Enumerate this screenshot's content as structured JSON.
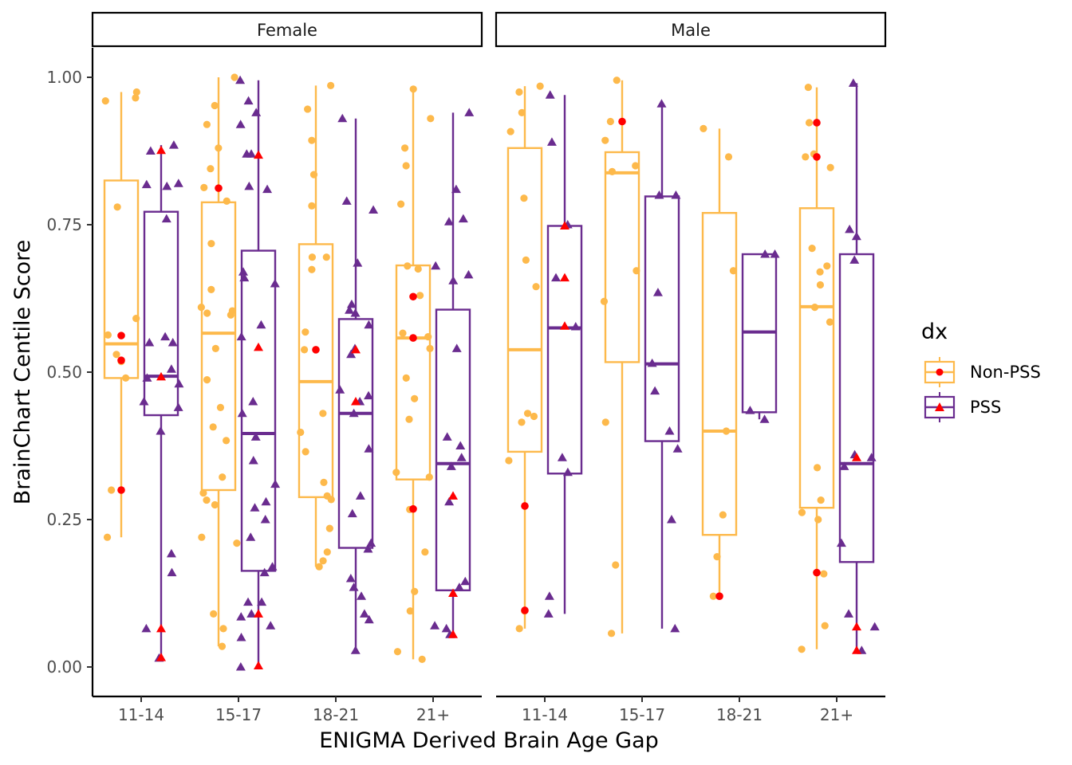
{
  "chart_data": {
    "type": "box",
    "xlabel": "ENIGMA Derived Brain Age Gap",
    "ylabel": "BrainChart Centile Score",
    "ylim": [
      -0.05,
      1.05
    ],
    "y_ticks": [
      "0.00",
      "0.25",
      "0.50",
      "0.75",
      "1.00"
    ],
    "y_tick_values": [
      0,
      0.25,
      0.5,
      0.75,
      1.0
    ],
    "categories": [
      "11-14",
      "15-17",
      "18-21",
      "21+"
    ],
    "facets": [
      "Female",
      "Male"
    ],
    "grid": false,
    "legend": {
      "title": "dx",
      "position": "right",
      "entries": [
        {
          "label": "Non-PSS",
          "color": "#FDB94B",
          "shape": "circle"
        },
        {
          "label": "PSS",
          "color": "#6A2C8F",
          "shape": "triangle"
        }
      ]
    },
    "outlier_color": "#FF0000",
    "boxes": {
      "Female": {
        "Non-PSS": [
          {
            "category": "11-14",
            "whisker_low": 0.22,
            "q1": 0.49,
            "median": 0.548,
            "q3": 0.825,
            "whisker_high": 0.975
          },
          {
            "category": "15-17",
            "whisker_low": 0.035,
            "q1": 0.3,
            "median": 0.566,
            "q3": 0.788,
            "whisker_high": 1.0
          },
          {
            "category": "18-21",
            "whisker_low": 0.17,
            "q1": 0.288,
            "median": 0.484,
            "q3": 0.717,
            "whisker_high": 0.986
          },
          {
            "category": "21+",
            "whisker_low": 0.013,
            "q1": 0.318,
            "median": 0.558,
            "q3": 0.681,
            "whisker_high": 0.98
          }
        ],
        "PSS": [
          {
            "category": "11-14",
            "whisker_low": 0.015,
            "q1": 0.427,
            "median": 0.493,
            "q3": 0.772,
            "whisker_high": 0.885
          },
          {
            "category": "15-17",
            "whisker_low": 0.0,
            "q1": 0.163,
            "median": 0.396,
            "q3": 0.706,
            "whisker_high": 0.995
          },
          {
            "category": "18-21",
            "whisker_low": 0.028,
            "q1": 0.202,
            "median": 0.43,
            "q3": 0.59,
            "whisker_high": 0.93
          },
          {
            "category": "21+",
            "whisker_low": 0.055,
            "q1": 0.13,
            "median": 0.345,
            "q3": 0.606,
            "whisker_high": 0.94
          }
        ]
      },
      "Male": {
        "Non-PSS": [
          {
            "category": "11-14",
            "whisker_low": 0.065,
            "q1": 0.365,
            "median": 0.538,
            "q3": 0.88,
            "whisker_high": 0.985
          },
          {
            "category": "15-17",
            "whisker_low": 0.057,
            "q1": 0.517,
            "median": 0.838,
            "q3": 0.873,
            "whisker_high": 0.995
          },
          {
            "category": "18-21",
            "whisker_low": 0.12,
            "q1": 0.224,
            "median": 0.4,
            "q3": 0.77,
            "whisker_high": 0.913
          },
          {
            "category": "21+",
            "whisker_low": 0.03,
            "q1": 0.27,
            "median": 0.611,
            "q3": 0.778,
            "whisker_high": 0.983
          }
        ],
        "PSS": [
          {
            "category": "11-14",
            "whisker_low": 0.09,
            "q1": 0.328,
            "median": 0.575,
            "q3": 0.748,
            "whisker_high": 0.97
          },
          {
            "category": "15-17",
            "whisker_low": 0.065,
            "q1": 0.383,
            "median": 0.514,
            "q3": 0.798,
            "whisker_high": 0.955
          },
          {
            "category": "18-21",
            "whisker_low": 0.42,
            "q1": 0.432,
            "median": 0.568,
            "q3": 0.7,
            "whisker_high": 0.7
          },
          {
            "category": "21+",
            "whisker_low": 0.028,
            "q1": 0.178,
            "median": 0.345,
            "q3": 0.7,
            "whisker_high": 0.99
          }
        ]
      }
    },
    "points": {
      "Female": {
        "Non-PSS": [
          {
            "category": "11-14",
            "values": [
              0.965,
              0.975,
              0.96,
              0.78,
              0.591,
              0.563,
              0.53,
              0.518,
              0.49,
              0.3,
              0.22
            ]
          },
          {
            "category": "15-17",
            "values": [
              1.0,
              0.952,
              0.92,
              0.88,
              0.845,
              0.813,
              0.79,
              0.718,
              0.64,
              0.61,
              0.604,
              0.6,
              0.597,
              0.54,
              0.487,
              0.44,
              0.407,
              0.384,
              0.322,
              0.295,
              0.283,
              0.275,
              0.22,
              0.21,
              0.09,
              0.065,
              0.035
            ]
          },
          {
            "category": "18-21",
            "values": [
              0.986,
              0.946,
              0.893,
              0.835,
              0.782,
              0.695,
              0.695,
              0.674,
              0.568,
              0.538,
              0.43,
              0.398,
              0.365,
              0.313,
              0.29,
              0.284,
              0.235,
              0.195,
              0.18,
              0.17
            ]
          },
          {
            "category": "21+",
            "values": [
              0.98,
              0.93,
              0.88,
              0.85,
              0.785,
              0.68,
              0.675,
              0.63,
              0.566,
              0.56,
              0.54,
              0.49,
              0.455,
              0.42,
              0.33,
              0.322,
              0.267,
              0.195,
              0.128,
              0.095,
              0.026,
              0.013
            ]
          }
        ],
        "PSS": [
          {
            "category": "11-14",
            "values": [
              0.885,
              0.875,
              0.82,
              0.818,
              0.815,
              0.76,
              0.56,
              0.55,
              0.55,
              0.505,
              0.49,
              0.48,
              0.45,
              0.44,
              0.4,
              0.192,
              0.16,
              0.065,
              0.015
            ]
          },
          {
            "category": "15-17",
            "values": [
              0.995,
              0.96,
              0.94,
              0.92,
              0.87,
              0.87,
              0.815,
              0.81,
              0.67,
              0.66,
              0.65,
              0.58,
              0.56,
              0.45,
              0.43,
              0.39,
              0.35,
              0.31,
              0.28,
              0.27,
              0.25,
              0.22,
              0.17,
              0.16,
              0.11,
              0.11,
              0.09,
              0.085,
              0.07,
              0.05,
              0.0
            ]
          },
          {
            "category": "18-21",
            "values": [
              0.93,
              0.79,
              0.775,
              0.685,
              0.615,
              0.605,
              0.6,
              0.58,
              0.54,
              0.53,
              0.47,
              0.46,
              0.45,
              0.43,
              0.37,
              0.29,
              0.26,
              0.21,
              0.2,
              0.15,
              0.135,
              0.12,
              0.09,
              0.08,
              0.028
            ]
          },
          {
            "category": "21+",
            "values": [
              0.94,
              0.81,
              0.76,
              0.755,
              0.68,
              0.665,
              0.655,
              0.54,
              0.39,
              0.375,
              0.355,
              0.34,
              0.28,
              0.145,
              0.135,
              0.07,
              0.065,
              0.055
            ]
          }
        ]
      },
      "Male": {
        "Non-PSS": [
          {
            "category": "11-14",
            "values": [
              0.985,
              0.975,
              0.94,
              0.908,
              0.795,
              0.69,
              0.645,
              0.43,
              0.425,
              0.415,
              0.35,
              0.095,
              0.065
            ]
          },
          {
            "category": "15-17",
            "values": [
              0.995,
              0.925,
              0.893,
              0.85,
              0.84,
              0.672,
              0.62,
              0.415,
              0.173,
              0.057
            ]
          },
          {
            "category": "18-21",
            "values": [
              0.913,
              0.865,
              0.672,
              0.4,
              0.258,
              0.187,
              0.12
            ]
          },
          {
            "category": "21+",
            "values": [
              0.983,
              0.923,
              0.87,
              0.865,
              0.847,
              0.71,
              0.68,
              0.67,
              0.648,
              0.61,
              0.585,
              0.338,
              0.283,
              0.262,
              0.25,
              0.158,
              0.07,
              0.03
            ]
          }
        ],
        "PSS": [
          {
            "category": "11-14",
            "values": [
              0.97,
              0.89,
              0.75,
              0.66,
              0.577,
              0.355,
              0.33,
              0.12,
              0.09
            ]
          },
          {
            "category": "15-17",
            "values": [
              0.955,
              0.8,
              0.8,
              0.635,
              0.515,
              0.468,
              0.4,
              0.37,
              0.25,
              0.065
            ]
          },
          {
            "category": "18-21",
            "values": [
              0.7,
              0.7,
              0.435,
              0.42
            ]
          },
          {
            "category": "21+",
            "values": [
              0.99,
              0.742,
              0.73,
              0.69,
              0.36,
              0.355,
              0.34,
              0.21,
              0.09,
              0.068,
              0.028
            ]
          }
        ]
      }
    },
    "outliers": {
      "Female": {
        "Non-PSS": [
          {
            "category": "11-14",
            "values": [
              0.562,
              0.52,
              0.3
            ]
          },
          {
            "category": "15-17",
            "values": [
              0.812
            ]
          },
          {
            "category": "18-21",
            "values": [
              0.538
            ]
          },
          {
            "category": "21+",
            "values": [
              0.628,
              0.558,
              0.268
            ]
          }
        ],
        "PSS": [
          {
            "category": "11-14",
            "values": [
              0.876,
              0.492,
              0.065,
              0.016
            ]
          },
          {
            "category": "15-17",
            "values": [
              0.868,
              0.542,
              0.09,
              0.002
            ]
          },
          {
            "category": "18-21",
            "values": [
              0.538,
              0.45
            ]
          },
          {
            "category": "21+",
            "values": [
              0.29,
              0.125,
              0.055
            ]
          }
        ]
      },
      "Male": {
        "Non-PSS": [
          {
            "category": "11-14",
            "values": [
              0.273,
              0.096
            ]
          },
          {
            "category": "15-17",
            "values": [
              0.925
            ]
          },
          {
            "category": "18-21",
            "values": [
              0.12
            ]
          },
          {
            "category": "21+",
            "values": [
              0.923,
              0.865,
              0.16
            ]
          }
        ],
        "PSS": [
          {
            "category": "11-14",
            "values": [
              0.748,
              0.66,
              0.578
            ]
          },
          {
            "category": "15-17",
            "values": []
          },
          {
            "category": "18-21",
            "values": []
          },
          {
            "category": "21+",
            "values": [
              0.355,
              0.068,
              0.028
            ]
          }
        ]
      }
    }
  }
}
